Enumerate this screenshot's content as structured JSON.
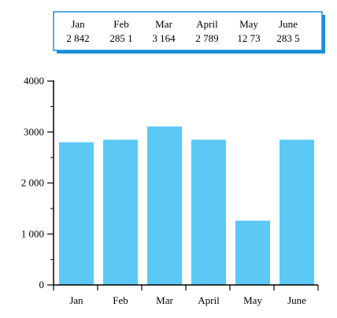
{
  "chart_data": {
    "type": "bar",
    "categories": [
      "Jan",
      "Feb",
      "Mar",
      "April",
      "May",
      "June"
    ],
    "values": [
      2842,
      2851,
      3164,
      2789,
      1273,
      2835
    ],
    "bar_heights_estimated": [
      2800,
      2850,
      3110,
      2850,
      1260,
      2850
    ],
    "title": "",
    "xlabel": "",
    "ylabel": "",
    "ylim": [
      0,
      4000
    ],
    "yticks": [
      0,
      1000,
      2000,
      3000,
      4000
    ],
    "ytick_labels": [
      "0",
      "1 000",
      "2 000",
      "3000",
      "4000"
    ],
    "data_table": {
      "headers": [
        "Jan",
        "Feb",
        "Mar",
        "April",
        "May",
        "June"
      ],
      "values": [
        "2 842",
        "285 1",
        "3 164",
        "2 789",
        "12 73",
        "283 5"
      ]
    },
    "colors": {
      "bar": "#5bc8f5",
      "table_border": "#1a8fd8",
      "table_shadow": "#1a8fd8"
    },
    "grid": false,
    "legend": "none"
  }
}
